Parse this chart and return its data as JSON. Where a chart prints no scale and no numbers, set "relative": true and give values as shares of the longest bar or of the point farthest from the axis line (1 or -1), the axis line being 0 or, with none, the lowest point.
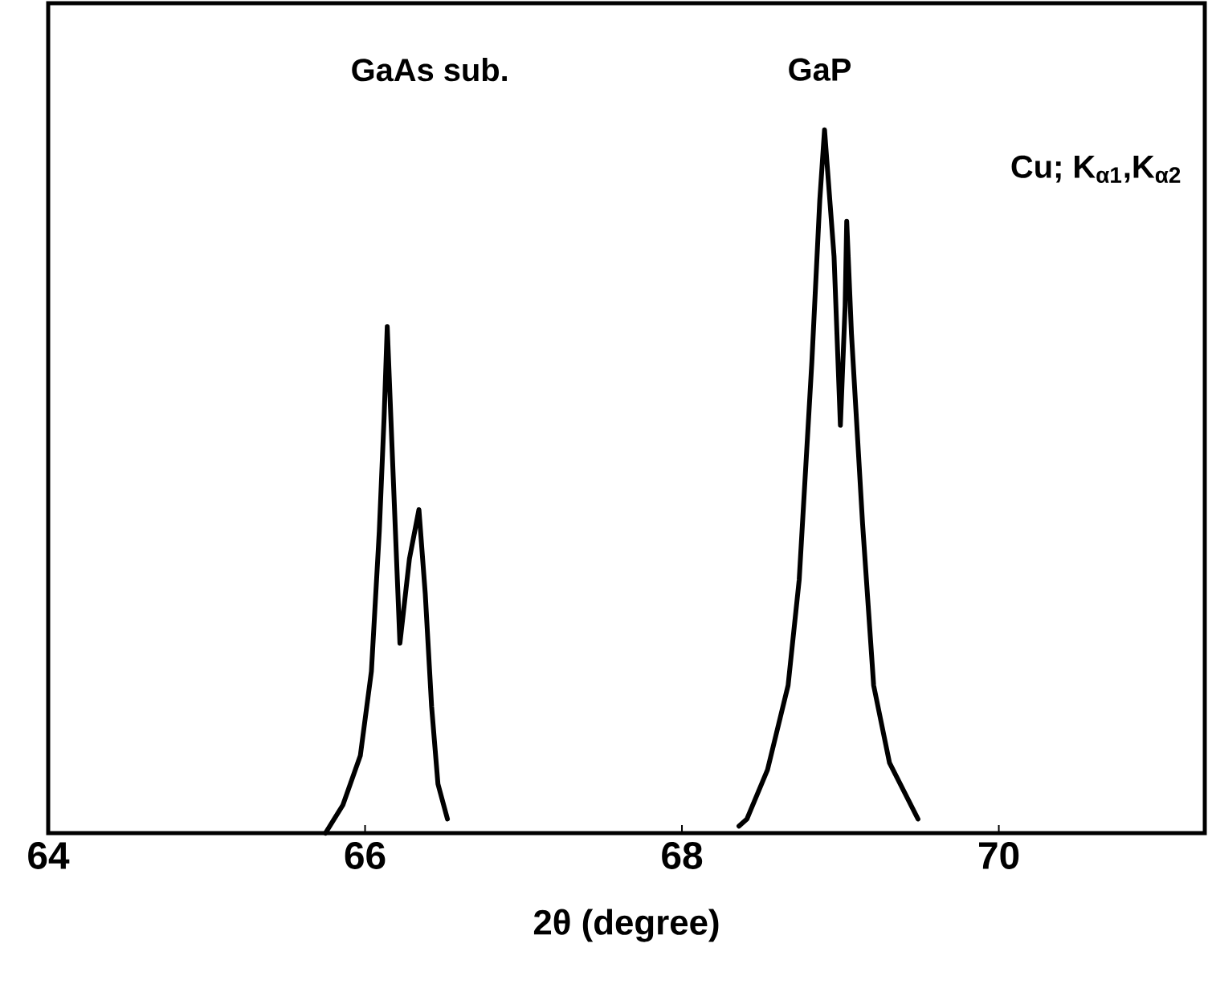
{
  "chart_data": {
    "type": "line",
    "xlabel": "2θ (degree)",
    "relative": true,
    "grid": false,
    "xlim": [
      64,
      71.3
    ],
    "xticks": [
      64,
      66,
      68,
      70
    ],
    "series": [
      {
        "color": "#000000",
        "x": [
          65.75,
          65.86,
          65.97,
          66.04,
          66.09,
          66.12,
          66.14,
          66.17,
          66.22,
          66.28,
          66.34,
          66.38,
          66.42,
          66.46,
          66.52
        ],
        "values": [
          0,
          0.04,
          0.11,
          0.23,
          0.43,
          0.59,
          0.72,
          0.55,
          0.27,
          0.39,
          0.46,
          0.34,
          0.18,
          0.07,
          0.02
        ]
      },
      {
        "color": "#000000",
        "x": [
          68.36,
          68.41,
          68.54,
          68.67,
          68.74,
          68.82,
          68.87,
          68.9,
          68.96,
          69.0,
          69.03,
          69.04,
          69.07,
          69.14,
          69.21,
          69.31,
          69.49
        ],
        "values": [
          0.01,
          0.02,
          0.09,
          0.21,
          0.36,
          0.67,
          0.9,
          1.0,
          0.82,
          0.58,
          0.75,
          0.87,
          0.71,
          0.44,
          0.21,
          0.1,
          0.02
        ]
      }
    ],
    "annotations": [
      "GaAs sub.",
      "GaP",
      "Cu; K$_{α1}$,K$_{α2}$"
    ]
  }
}
